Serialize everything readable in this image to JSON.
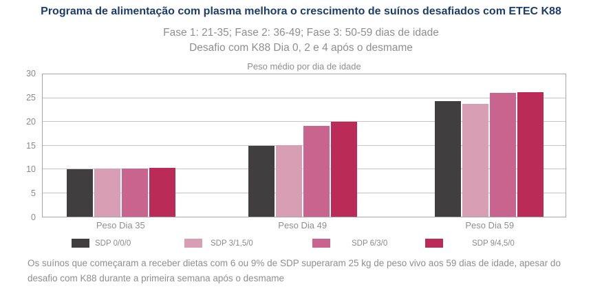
{
  "header": {
    "title": "Programa de alimentação com plasma melhora o crescimento de suínos desafiados com ETEC K88",
    "subtitle_line1": "Fase 1: 21-35; Fase 2: 36-49; Fase 3: 50-59 dias de idade",
    "subtitle_line2": "Desafio com K88 Dia 0, 2 e 4 após o desmame"
  },
  "chart_data": {
    "type": "bar",
    "title": "Peso médio por dia de idade",
    "categories": [
      "Peso Dia 35",
      "Peso Dia 49",
      "Peso Dia 59"
    ],
    "series": [
      {
        "name": "SDP 0/0/0",
        "color": "#413e40",
        "values": [
          10.0,
          15.0,
          24.3
        ]
      },
      {
        "name": "SDP 3/1,5/0",
        "color": "#d89fb4",
        "values": [
          10.1,
          15.1,
          23.8
        ]
      },
      {
        "name": "SDP 6/3/0",
        "color": "#c9648e",
        "values": [
          10.1,
          19.2,
          26.1
        ]
      },
      {
        "name": "SDP 9/4,5/0",
        "color": "#bb2b58",
        "values": [
          10.3,
          20.0,
          26.2
        ]
      }
    ],
    "ylim": [
      0,
      30
    ],
    "yticks": [
      0,
      5,
      10,
      15,
      20,
      25,
      30
    ],
    "grid": true,
    "legend_position": "bottom"
  },
  "footer": {
    "note": "Os suínos que começaram a receber dietas com 6 ou 9% de SDP superaram 25 kg de peso vivo aos 59 dias de idade, apesar do desafio com K88 durante a primeira semana após o desmame"
  },
  "colors": {
    "title_navy": "#1d3c6e",
    "text_gray": "#8e8e8e",
    "grid_gray": "#c4c4c4",
    "plot_border_gray": "#a6a6a6"
  }
}
